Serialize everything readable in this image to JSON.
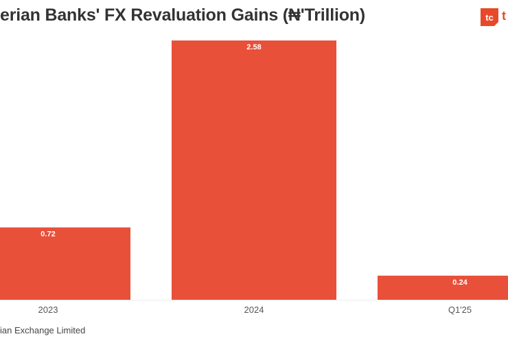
{
  "title": "erian Banks' FX Revaluation Gains (₦'Trillion)",
  "source": "ian Exchange Limited",
  "logo": {
    "text": "tc",
    "trailing_text": "t",
    "color": "#e8492a"
  },
  "chart_data": {
    "type": "bar",
    "title": "erian Banks' FX Revaluation Gains (₦'Trillion)",
    "categories": [
      "2023",
      "2024",
      "Q1'25"
    ],
    "values": [
      0.72,
      2.58,
      0.24
    ],
    "data_labels": [
      "0.72",
      "2.58",
      "0.24"
    ],
    "ylim": [
      0,
      2.58
    ],
    "grid": false,
    "bar_color": "#e8503a",
    "label_color": "#ffffff",
    "tick_color": "#555555"
  }
}
